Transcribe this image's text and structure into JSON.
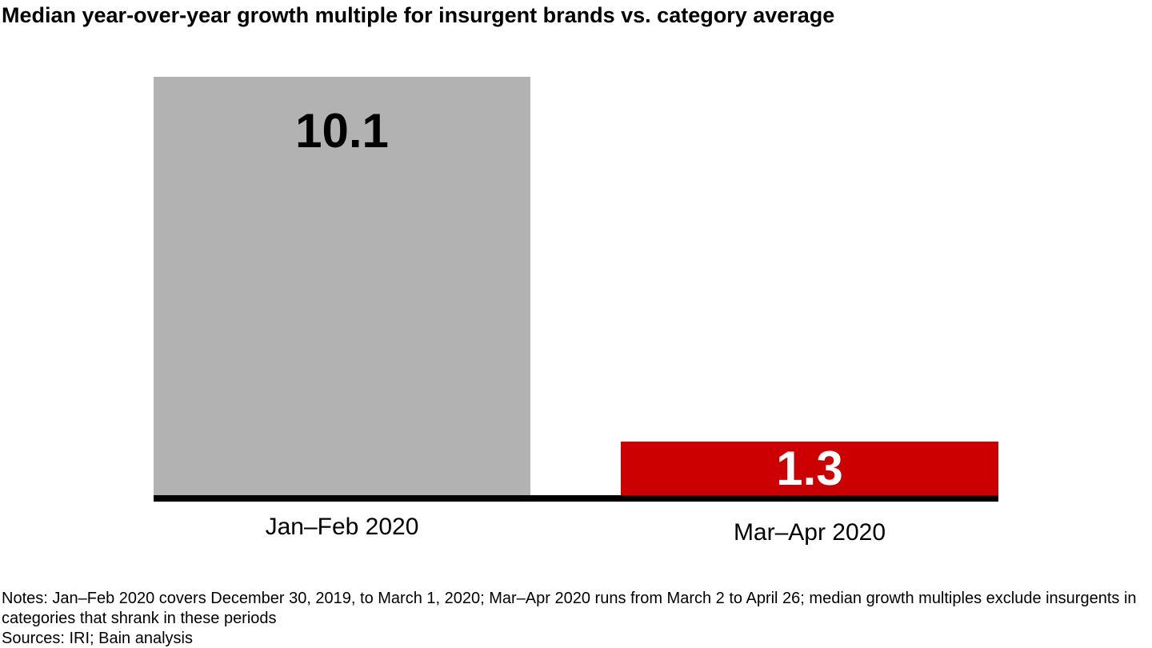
{
  "header": {
    "title": "Median year-over-year growth multiple for insurgent brands vs. category average"
  },
  "chart_data": {
    "type": "bar",
    "title": "Median year-over-year growth multiple for insurgent brands vs. category average",
    "categories": [
      "Jan–Feb 2020",
      "Mar–Apr 2020"
    ],
    "values": [
      10.1,
      1.3
    ],
    "value_labels": [
      "10.1",
      "1.3"
    ],
    "bar_colors": [
      "#b2b2b2",
      "#cc0000"
    ],
    "value_label_colors": [
      "#000000",
      "#ffffff"
    ],
    "xlabel": "",
    "ylabel": "",
    "ylim": [
      0,
      10.1
    ],
    "grid": false,
    "legend_position": "none",
    "axis_baseline_color": "#000000"
  },
  "footer": {
    "notes": "Notes: Jan–Feb 2020 covers December 30, 2019, to March 1, 2020; Mar–Apr 2020 runs from March 2 to April 26; median growth multiples exclude insurgents in categories that shrank in these periods",
    "sources": "Sources: IRI; Bain analysis"
  }
}
